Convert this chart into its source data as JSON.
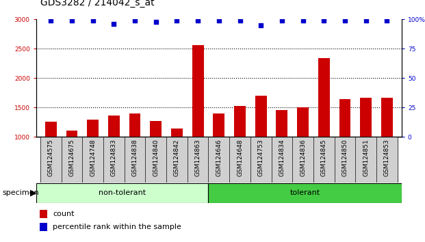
{
  "title": "GDS3282 / 214042_s_at",
  "categories": [
    "GSM124575",
    "GSM124675",
    "GSM124748",
    "GSM124833",
    "GSM124838",
    "GSM124840",
    "GSM124842",
    "GSM124863",
    "GSM124646",
    "GSM124648",
    "GSM124753",
    "GSM124834",
    "GSM124836",
    "GSM124845",
    "GSM124850",
    "GSM124851",
    "GSM124853"
  ],
  "bar_values": [
    1255,
    1105,
    1295,
    1365,
    1395,
    1270,
    1145,
    2560,
    1395,
    1520,
    1695,
    1460,
    1505,
    2340,
    1640,
    1660,
    1665
  ],
  "percentile_values": [
    99,
    99,
    99,
    96,
    99,
    98,
    99,
    99,
    99,
    99,
    95,
    99,
    99,
    99,
    99,
    99,
    99
  ],
  "bar_color": "#cc0000",
  "dot_color": "#0000cc",
  "ylim_left": [
    1000,
    3000
  ],
  "ylim_right": [
    0,
    100
  ],
  "yticks_left": [
    1000,
    1500,
    2000,
    2500,
    3000
  ],
  "yticks_right": [
    0,
    25,
    50,
    75,
    100
  ],
  "ytick_labels_right": [
    "0",
    "25",
    "50",
    "75",
    "100%"
  ],
  "groups": [
    {
      "label": "non-tolerant",
      "n_bars": 8,
      "color": "#ccffcc"
    },
    {
      "label": "tolerant",
      "n_bars": 9,
      "color": "#44cc44"
    }
  ],
  "specimen_label": "specimen",
  "legend_count_label": "count",
  "legend_pct_label": "percentile rank within the sample",
  "background_color": "#ffffff",
  "tick_bg_color": "#d0d0d0",
  "title_fontsize": 10,
  "tick_fontsize": 6.5,
  "group_fontsize": 8,
  "legend_fontsize": 8
}
